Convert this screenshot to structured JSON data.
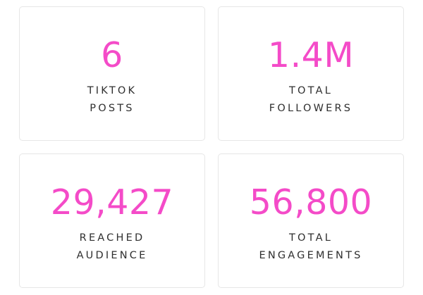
{
  "theme": {
    "accent": "#F44BC8",
    "label_color": "#2F2F2F",
    "card_border": "#E6E6E6"
  },
  "stats": [
    {
      "value": "6",
      "label_line1": "TIKTOK",
      "label_line2": "POSTS"
    },
    {
      "value": "1.4M",
      "label_line1": "TOTAL",
      "label_line2": "FOLLOWERS"
    },
    {
      "value": "29,427",
      "label_line1": "REACHED",
      "label_line2": "AUDIENCE"
    },
    {
      "value": "56,800",
      "label_line1": "TOTAL",
      "label_line2": "ENGAGEMENTS"
    }
  ]
}
